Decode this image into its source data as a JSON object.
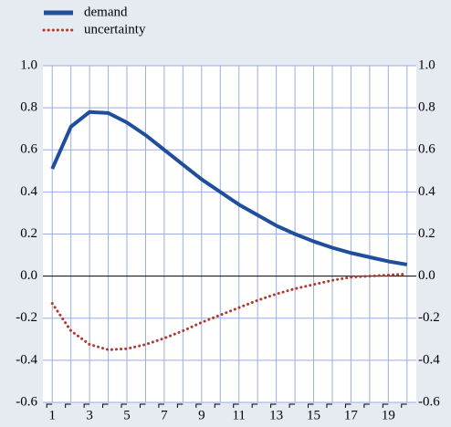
{
  "chart_data": {
    "type": "line",
    "x": [
      1,
      2,
      3,
      4,
      5,
      6,
      7,
      8,
      9,
      10,
      11,
      12,
      13,
      14,
      15,
      16,
      17,
      18,
      19,
      20
    ],
    "series": [
      {
        "name": "demand",
        "color": "#1f4e9c",
        "style": "solid",
        "values": [
          0.51,
          0.71,
          0.78,
          0.775,
          0.73,
          0.67,
          0.6,
          0.53,
          0.46,
          0.4,
          0.34,
          0.29,
          0.24,
          0.2,
          0.165,
          0.135,
          0.11,
          0.09,
          0.07,
          0.055
        ]
      },
      {
        "name": "uncertainty",
        "color": "#b03a2e",
        "style": "dotted",
        "values": [
          -0.13,
          -0.26,
          -0.325,
          -0.35,
          -0.345,
          -0.325,
          -0.295,
          -0.26,
          -0.22,
          -0.185,
          -0.15,
          -0.115,
          -0.085,
          -0.06,
          -0.04,
          -0.02,
          -0.005,
          0.0,
          0.005,
          0.01
        ]
      }
    ],
    "xlim": [
      0.5,
      20.5
    ],
    "xticks": [
      1,
      3,
      5,
      7,
      9,
      11,
      13,
      15,
      17,
      19
    ],
    "xgrid": [
      1,
      2,
      3,
      4,
      5,
      6,
      7,
      8,
      9,
      10,
      11,
      12,
      13,
      14,
      15,
      16,
      17,
      18,
      19,
      20
    ],
    "ylim": [
      -0.6,
      1.0
    ],
    "yticks": [
      {
        "value": 1.0,
        "label": "1.0"
      },
      0.8,
      0.6,
      0.4,
      0.2,
      {
        "value": 0,
        "label": "0.0"
      },
      -0.2,
      -0.4,
      -0.6
    ],
    "right_axis_mirror": true,
    "grid": true,
    "legend": "top-left"
  }
}
